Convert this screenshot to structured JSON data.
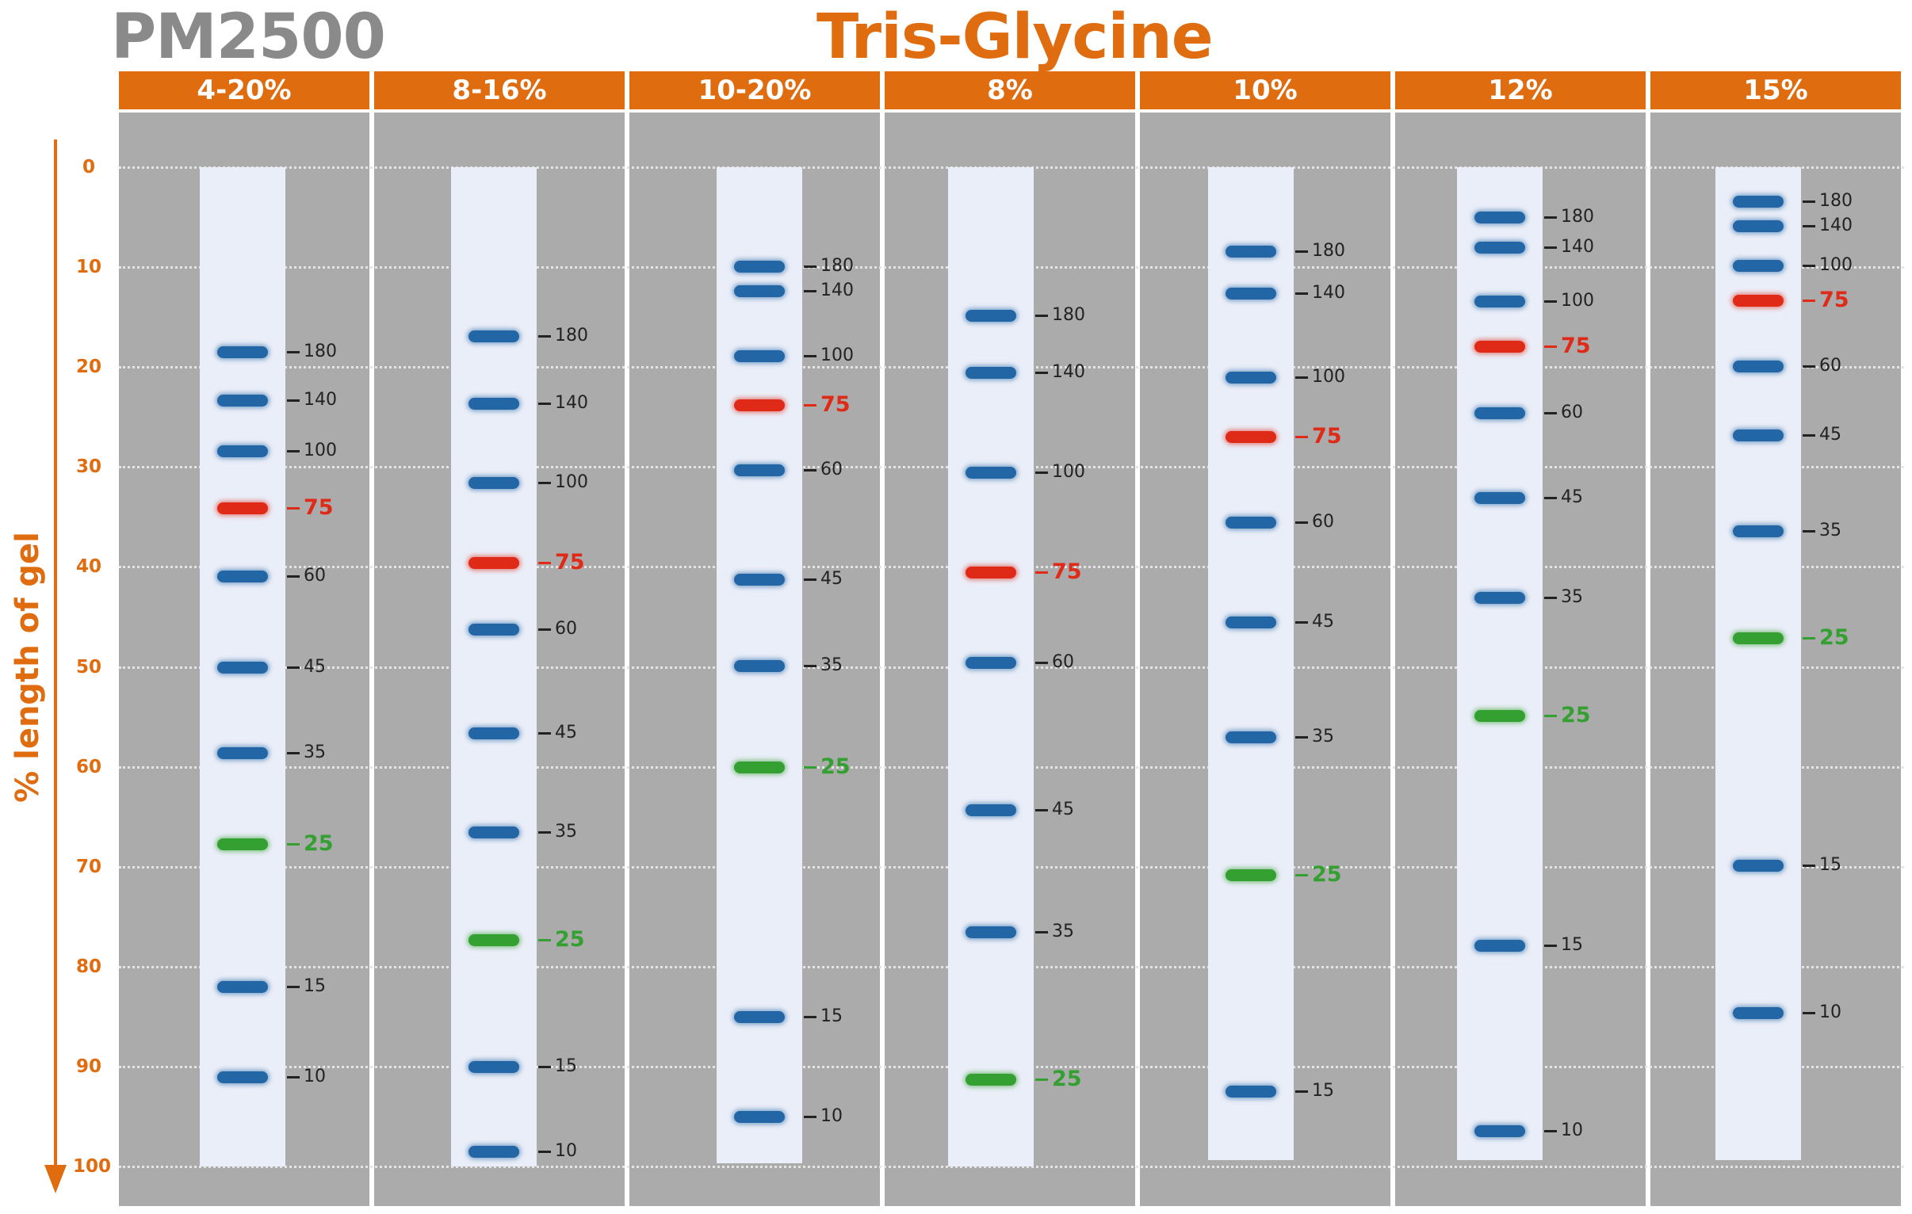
{
  "title": {
    "product": "PM2500",
    "buffer": "Tris-Glycine"
  },
  "colors": {
    "accent": "#e06c10",
    "title_gray": "#8a8a8a",
    "panel_gray": "#ababab",
    "lane": "#eaeef8",
    "band_blue": "#2366a6",
    "band_red": "#e02a18",
    "band_green": "#34a032"
  },
  "axis": {
    "title": "% length of gel",
    "ticks": [
      "0",
      "10",
      "20",
      "30",
      "40",
      "50",
      "60",
      "70",
      "80",
      "90",
      "100"
    ],
    "range": [
      0,
      100
    ],
    "direction": "downward-arrow"
  },
  "chart_data": {
    "type": "table",
    "title": "Tris-Glycine",
    "ylabel": "% length of gel",
    "ylim": [
      0,
      100
    ],
    "gels": [
      {
        "label": "4-20%",
        "lane_end": 100,
        "bands": [
          {
            "mw": "180",
            "pos": 18.5,
            "color": "blue"
          },
          {
            "mw": "140",
            "pos": 23.3,
            "color": "blue"
          },
          {
            "mw": "100",
            "pos": 28.4,
            "color": "blue"
          },
          {
            "mw": "75",
            "pos": 34.1,
            "color": "red"
          },
          {
            "mw": "60",
            "pos": 40.9,
            "color": "blue"
          },
          {
            "mw": "45",
            "pos": 50.0,
            "color": "blue"
          },
          {
            "mw": "35",
            "pos": 58.6,
            "color": "blue"
          },
          {
            "mw": "25",
            "pos": 67.7,
            "color": "green"
          },
          {
            "mw": "15",
            "pos": 82.0,
            "color": "blue"
          },
          {
            "mw": "10",
            "pos": 91.0,
            "color": "blue"
          }
        ]
      },
      {
        "label": "8-16%",
        "lane_end": 100,
        "bands": [
          {
            "mw": "180",
            "pos": 16.9,
            "color": "blue"
          },
          {
            "mw": "140",
            "pos": 23.6,
            "color": "blue"
          },
          {
            "mw": "100",
            "pos": 31.6,
            "color": "blue"
          },
          {
            "mw": "75",
            "pos": 39.6,
            "color": "red"
          },
          {
            "mw": "60",
            "pos": 46.2,
            "color": "blue"
          },
          {
            "mw": "45",
            "pos": 56.6,
            "color": "blue"
          },
          {
            "mw": "35",
            "pos": 66.5,
            "color": "blue"
          },
          {
            "mw": "25",
            "pos": 77.3,
            "color": "green"
          },
          {
            "mw": "15",
            "pos": 90.0,
            "color": "blue"
          },
          {
            "mw": "10",
            "pos": 98.5,
            "color": "blue"
          }
        ]
      },
      {
        "label": "10-20%",
        "lane_end": 99.7,
        "bands": [
          {
            "mw": "180",
            "pos": 9.9,
            "color": "blue"
          },
          {
            "mw": "140",
            "pos": 12.4,
            "color": "blue"
          },
          {
            "mw": "100",
            "pos": 18.9,
            "color": "blue"
          },
          {
            "mw": "75",
            "pos": 23.8,
            "color": "red"
          },
          {
            "mw": "60",
            "pos": 30.3,
            "color": "blue"
          },
          {
            "mw": "45",
            "pos": 41.2,
            "color": "blue"
          },
          {
            "mw": "35",
            "pos": 49.9,
            "color": "blue"
          },
          {
            "mw": "25",
            "pos": 60.0,
            "color": "green"
          },
          {
            "mw": "15",
            "pos": 85.0,
            "color": "blue"
          },
          {
            "mw": "10",
            "pos": 95.0,
            "color": "blue"
          }
        ]
      },
      {
        "label": "8%",
        "lane_end": 100,
        "bands": [
          {
            "mw": "180",
            "pos": 14.8,
            "color": "blue"
          },
          {
            "mw": "140",
            "pos": 20.5,
            "color": "blue"
          },
          {
            "mw": "100",
            "pos": 30.5,
            "color": "blue"
          },
          {
            "mw": "75",
            "pos": 40.5,
            "color": "red"
          },
          {
            "mw": "60",
            "pos": 49.6,
            "color": "blue"
          },
          {
            "mw": "45",
            "pos": 64.3,
            "color": "blue"
          },
          {
            "mw": "35",
            "pos": 76.5,
            "color": "blue"
          },
          {
            "mw": "25",
            "pos": 91.3,
            "color": "green"
          }
        ]
      },
      {
        "label": "10%",
        "lane_end": 99.4,
        "bands": [
          {
            "mw": "180",
            "pos": 8.4,
            "color": "blue"
          },
          {
            "mw": "140",
            "pos": 12.6,
            "color": "blue"
          },
          {
            "mw": "100",
            "pos": 21.0,
            "color": "blue"
          },
          {
            "mw": "75",
            "pos": 27.0,
            "color": "red"
          },
          {
            "mw": "60",
            "pos": 35.5,
            "color": "blue"
          },
          {
            "mw": "45",
            "pos": 45.5,
            "color": "blue"
          },
          {
            "mw": "35",
            "pos": 57.0,
            "color": "blue"
          },
          {
            "mw": "25",
            "pos": 70.8,
            "color": "green"
          },
          {
            "mw": "15",
            "pos": 92.5,
            "color": "blue"
          }
        ]
      },
      {
        "label": "12%",
        "lane_end": 99.4,
        "bands": [
          {
            "mw": "180",
            "pos": 5.0,
            "color": "blue"
          },
          {
            "mw": "140",
            "pos": 8.0,
            "color": "blue"
          },
          {
            "mw": "100",
            "pos": 13.4,
            "color": "blue"
          },
          {
            "mw": "75",
            "pos": 17.9,
            "color": "red"
          },
          {
            "mw": "60",
            "pos": 24.6,
            "color": "blue"
          },
          {
            "mw": "45",
            "pos": 33.1,
            "color": "blue"
          },
          {
            "mw": "35",
            "pos": 43.1,
            "color": "blue"
          },
          {
            "mw": "25",
            "pos": 54.9,
            "color": "green"
          },
          {
            "mw": "15",
            "pos": 77.9,
            "color": "blue"
          },
          {
            "mw": "10",
            "pos": 96.4,
            "color": "blue"
          }
        ]
      },
      {
        "label": "15%",
        "lane_end": 99.4,
        "bands": [
          {
            "mw": "180",
            "pos": 3.4,
            "color": "blue"
          },
          {
            "mw": "140",
            "pos": 5.9,
            "color": "blue"
          },
          {
            "mw": "100",
            "pos": 9.8,
            "color": "blue"
          },
          {
            "mw": "75",
            "pos": 13.3,
            "color": "red"
          },
          {
            "mw": "60",
            "pos": 19.9,
            "color": "blue"
          },
          {
            "mw": "45",
            "pos": 26.8,
            "color": "blue"
          },
          {
            "mw": "35",
            "pos": 36.4,
            "color": "blue"
          },
          {
            "mw": "25",
            "pos": 47.1,
            "color": "green"
          },
          {
            "mw": "15",
            "pos": 69.9,
            "color": "blue"
          },
          {
            "mw": "10",
            "pos": 84.6,
            "color": "blue"
          }
        ]
      }
    ]
  }
}
